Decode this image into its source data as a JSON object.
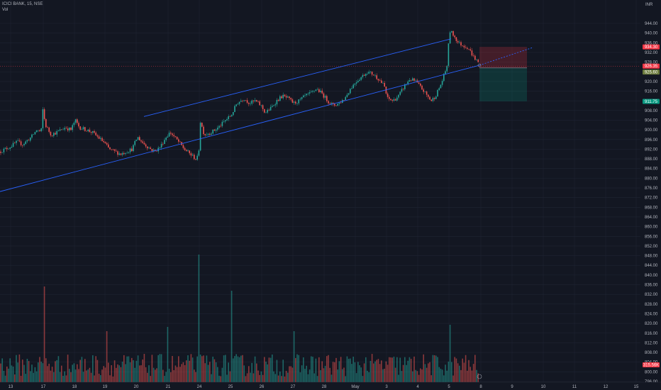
{
  "header": {
    "title": "ICICI BANK, 15, NSE",
    "volume_label": "Vol"
  },
  "chart_data": {
    "type": "candlestick",
    "symbol": "ICICI BANK",
    "interval": "15",
    "exchange": "NSE",
    "currency": "INR",
    "ylim": [
      796,
      948
    ],
    "y_ticks": [
      796,
      800,
      804,
      808,
      812,
      816,
      820,
      824,
      828,
      832,
      836,
      840,
      844,
      848,
      852,
      856,
      860,
      864,
      868,
      872,
      876,
      880,
      884,
      888,
      892,
      896,
      900,
      904,
      908,
      912,
      916,
      920,
      924,
      928,
      932,
      936,
      940,
      944
    ],
    "x_tick_labels": [
      "13",
      "17",
      "18",
      "19",
      "20",
      "21",
      "24",
      "25",
      "26",
      "27",
      "28",
      "May",
      "3",
      "4",
      "5",
      "8",
      "9",
      "10",
      "11",
      "12",
      "15"
    ],
    "price_path": [
      [
        0,
        891
      ],
      [
        14,
        893
      ],
      [
        24,
        895
      ],
      [
        32,
        894
      ],
      [
        44,
        897
      ],
      [
        52,
        900
      ],
      [
        58,
        899
      ],
      [
        60,
        909
      ],
      [
        64,
        902
      ],
      [
        72,
        898
      ],
      [
        80,
        899
      ],
      [
        92,
        901
      ],
      [
        100,
        900
      ],
      [
        106,
        904
      ],
      [
        112,
        901
      ],
      [
        122,
        900
      ],
      [
        130,
        899
      ],
      [
        138,
        897
      ],
      [
        146,
        895
      ],
      [
        154,
        892
      ],
      [
        162,
        891
      ],
      [
        170,
        890
      ],
      [
        178,
        891
      ],
      [
        186,
        892
      ],
      [
        194,
        897
      ],
      [
        200,
        895
      ],
      [
        208,
        893
      ],
      [
        218,
        891
      ],
      [
        226,
        893
      ],
      [
        234,
        897
      ],
      [
        240,
        899
      ],
      [
        246,
        897
      ],
      [
        252,
        895
      ],
      [
        260,
        892
      ],
      [
        268,
        890
      ],
      [
        276,
        888
      ],
      [
        280,
        889
      ],
      [
        282,
        904
      ],
      [
        288,
        898
      ],
      [
        298,
        899
      ],
      [
        308,
        901
      ],
      [
        318,
        904
      ],
      [
        326,
        906
      ],
      [
        334,
        911
      ],
      [
        344,
        913
      ],
      [
        352,
        911
      ],
      [
        360,
        912
      ],
      [
        368,
        910
      ],
      [
        374,
        907
      ],
      [
        382,
        909
      ],
      [
        390,
        912
      ],
      [
        398,
        914
      ],
      [
        406,
        913
      ],
      [
        414,
        911
      ],
      [
        422,
        912
      ],
      [
        430,
        914
      ],
      [
        438,
        915
      ],
      [
        446,
        917
      ],
      [
        454,
        915
      ],
      [
        462,
        912
      ],
      [
        470,
        910
      ],
      [
        478,
        911
      ],
      [
        486,
        913
      ],
      [
        494,
        917
      ],
      [
        502,
        920
      ],
      [
        510,
        922
      ],
      [
        518,
        924
      ],
      [
        526,
        923
      ],
      [
        534,
        921
      ],
      [
        542,
        918
      ],
      [
        546,
        913
      ],
      [
        554,
        912
      ],
      [
        562,
        914
      ],
      [
        570,
        918
      ],
      [
        578,
        921
      ],
      [
        586,
        920
      ],
      [
        592,
        918
      ],
      [
        600,
        915
      ],
      [
        608,
        912
      ],
      [
        614,
        914
      ],
      [
        622,
        919
      ],
      [
        630,
        926
      ],
      [
        634,
        941
      ],
      [
        640,
        939
      ],
      [
        646,
        936
      ],
      [
        652,
        935
      ],
      [
        660,
        934
      ],
      [
        668,
        930
      ],
      [
        674,
        928
      ],
      [
        676,
        926
      ]
    ],
    "trendlines": [
      {
        "name": "channel-upper",
        "p1": [
          203,
          905.5
        ],
        "p2": [
          636,
          937.6
        ]
      },
      {
        "name": "channel-lower",
        "p1": [
          0,
          874.5
        ],
        "p2": [
          676,
          926.7
        ]
      },
      {
        "name": "projection",
        "p1": [
          676,
          926.7
        ],
        "p2": [
          752,
          934.1
        ]
      }
    ],
    "position": {
      "type": "short",
      "x_start": 676,
      "x_end": 743,
      "stop": 934.3,
      "entry": 925.6,
      "target": 911.8
    },
    "volume_max_label": "",
    "price_tags": {
      "stop": {
        "label": "934.30",
        "color": "#f23645"
      },
      "current": {
        "label": "926.35",
        "color": "#f23645"
      },
      "entry": {
        "label": "925.60",
        "color": "#6b7a3c"
      },
      "target": {
        "label": "911.75",
        "color": "#089981"
      },
      "volume": {
        "label": "315.56K",
        "color": "#f23645"
      }
    },
    "colors": {
      "background": "#131722",
      "grid": "#1f2433",
      "up": "#26a69a",
      "down": "#ef5350",
      "trendline": "#2962ff",
      "stop_zone": "rgba(242,54,69,0.22)",
      "target_zone": "rgba(8,153,129,0.22)"
    },
    "grid": true,
    "volume_visible": true
  }
}
